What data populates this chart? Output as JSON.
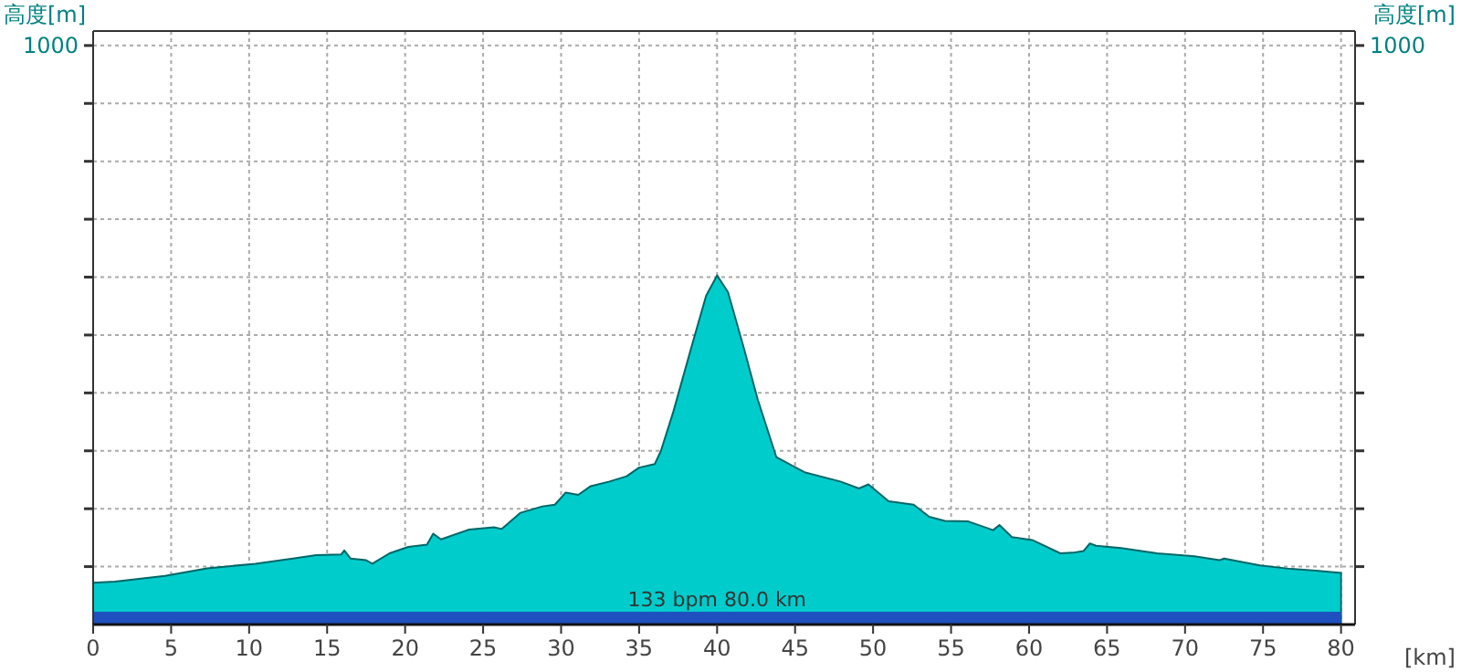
{
  "chart_data": {
    "type": "area",
    "ylabel": "高度[m]",
    "y2label": "高度[m]",
    "xlabel": "[km]",
    "x": [
      0,
      1.4,
      4.6,
      7.3,
      10.4,
      12.8,
      14.3,
      15.9,
      16.1,
      16.5,
      17.5,
      17.9,
      19.0,
      20.2,
      21.4,
      21.8,
      22.3,
      24.1,
      25.7,
      26.2,
      27.4,
      28.8,
      29.6,
      30.3,
      31.1,
      31.9,
      33.1,
      34.2,
      35.0,
      36.0,
      36.4,
      37.2,
      38.3,
      39.3,
      40.0,
      40.7,
      41.7,
      42.6,
      43.8,
      45.6,
      47.9,
      49.1,
      49.7,
      51.0,
      52.6,
      53.6,
      54.6,
      56.1,
      57.7,
      58.1,
      58.9,
      60.2,
      62.0,
      62.8,
      63.5,
      63.9,
      64.3,
      65.9,
      68.2,
      70.6,
      72.2,
      72.5,
      74.8,
      76.8,
      78.4,
      80
    ],
    "series": [
      {
        "color": "#00cccc",
        "values": [
          72,
          74,
          84,
          97,
          105,
          114,
          120,
          121,
          128,
          114,
          111,
          105,
          123,
          134,
          138,
          157,
          147,
          164,
          168,
          165,
          193,
          204,
          207,
          228,
          224,
          239,
          247,
          256,
          271,
          277,
          300,
          368,
          474,
          568,
          603,
          574,
          479,
          389,
          289,
          263,
          247,
          235,
          242,
          213,
          207,
          186,
          179,
          178,
          163,
          172,
          151,
          146,
          123,
          124,
          127,
          140,
          136,
          132,
          123,
          118,
          111,
          114,
          102,
          96,
          93,
          89
        ]
      }
    ],
    "xlim": [
      0,
      80.9
    ],
    "xticks": [
      0,
      5,
      10,
      15,
      20,
      25,
      30,
      35,
      40,
      45,
      50,
      55,
      60,
      65,
      70,
      75,
      80
    ],
    "ylim": [
      0,
      1025
    ],
    "yticks": [
      {
        "value": 100,
        "label": null
      },
      {
        "value": 200,
        "label": null
      },
      {
        "value": 300,
        "label": null
      },
      {
        "value": 400,
        "label": null
      },
      {
        "value": 500,
        "label": null
      },
      {
        "value": 600,
        "label": null
      },
      {
        "value": 700,
        "label": null
      },
      {
        "value": 800,
        "label": null
      },
      {
        "value": 900,
        "label": null
      },
      {
        "value": 1000,
        "label": "1000"
      }
    ],
    "annotations": [
      "1000"
    ],
    "grid": true,
    "bands": [
      {
        "axis": "y",
        "from": 0,
        "to": 22,
        "label": "133 bpm 80.0 km",
        "color": "#2050c0"
      }
    ]
  }
}
